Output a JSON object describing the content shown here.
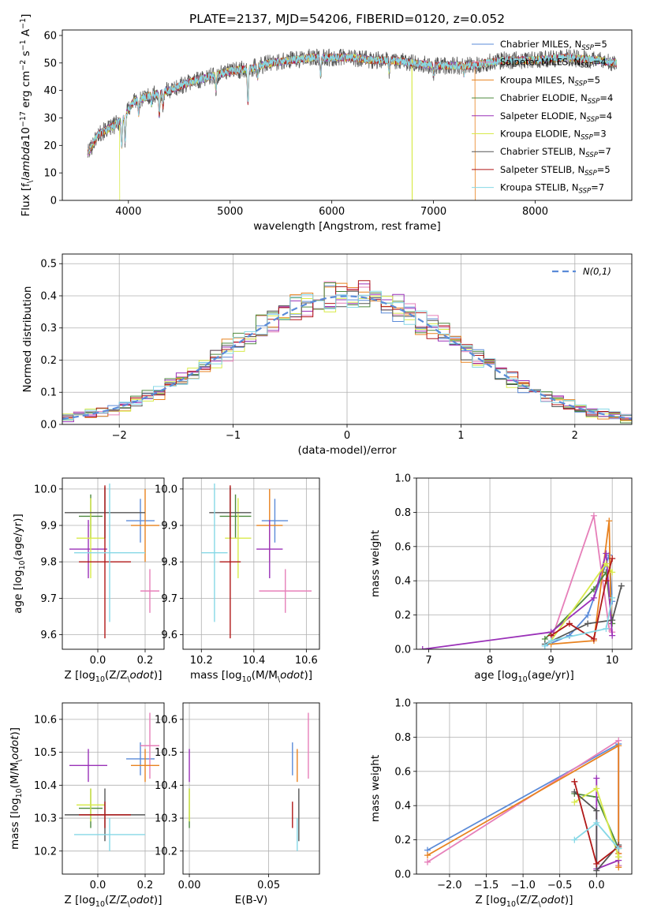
{
  "title": "PLATE=2137, MJD=54206, FIBERID=0120, z=0.052",
  "colors": {
    "Chabrier MILES": "#5b8bd8",
    "Salpeter MILES": "#e67fb9",
    "Kroupa MILES": "#e8821f",
    "Chabrier ELODIE": "#4d8a3d",
    "Salpeter ELODIE": "#9a31b8",
    "Kroupa ELODIE": "#d8ea4a",
    "Chabrier STELIB": "#555555",
    "Salpeter STELIB": "#b01818",
    "Kroupa STELIB": "#86d8e6"
  },
  "chart_data": [
    {
      "id": "spectrum",
      "type": "line",
      "title": "PLATE=2137, MJD=54206, FIBERID=0120, z=0.052",
      "xlabel": "wavelength [Angstrom, rest frame]",
      "ylabel": "Flux [f$_\\lambda$10$^{-17}$ erg cm$^{-2}$ s$^{-1}$ A$^{-1}$]",
      "xlim": [
        3350,
        8950
      ],
      "ylim": [
        0,
        62
      ],
      "xticks": [
        4000,
        5000,
        6000,
        7000,
        8000
      ],
      "yticks": [
        0,
        10,
        20,
        30,
        40,
        50,
        60
      ],
      "grid": false,
      "legend_position": "right",
      "legend": [
        {
          "model": "Chabrier MILES",
          "label": "Chabrier MILES, N",
          "sub": "SSP",
          "eq": "=5"
        },
        {
          "model": "Salpeter MILES",
          "label": "Salpeter MILES, N",
          "sub": "SSP",
          "eq": "=4"
        },
        {
          "model": "Kroupa MILES",
          "label": "Kroupa MILES, N",
          "sub": "SSP",
          "eq": "=5"
        },
        {
          "model": "Chabrier ELODIE",
          "label": "Chabrier ELODIE, N",
          "sub": "SSP",
          "eq": "=4"
        },
        {
          "model": "Salpeter ELODIE",
          "label": "Salpeter ELODIE, N",
          "sub": "SSP",
          "eq": "=4"
        },
        {
          "model": "Kroupa ELODIE",
          "label": "Kroupa ELODIE, N",
          "sub": "SSP",
          "eq": "=3"
        },
        {
          "model": "Chabrier STELIB",
          "label": "Chabrier STELIB, N",
          "sub": "SSP",
          "eq": "=7"
        },
        {
          "model": "Salpeter STELIB",
          "label": "Salpeter STELIB, N",
          "sub": "SSP",
          "eq": "=5"
        },
        {
          "model": "Kroupa STELIB",
          "label": "Kroupa STELIB, N",
          "sub": "SSP",
          "eq": "=7"
        }
      ],
      "continuum": [
        [
          3600,
          17
        ],
        [
          3700,
          24
        ],
        [
          3850,
          27
        ],
        [
          3950,
          30
        ],
        [
          4050,
          36
        ],
        [
          4200,
          38
        ],
        [
          4400,
          40
        ],
        [
          4600,
          43
        ],
        [
          4800,
          45
        ],
        [
          5000,
          47
        ],
        [
          5200,
          48
        ],
        [
          5400,
          50
        ],
        [
          5600,
          51
        ],
        [
          5800,
          52
        ],
        [
          6000,
          52
        ],
        [
          6200,
          52
        ],
        [
          6400,
          51
        ],
        [
          6600,
          51
        ],
        [
          6800,
          50
        ],
        [
          7000,
          49
        ],
        [
          7200,
          49
        ],
        [
          7400,
          49
        ],
        [
          7500,
          50
        ],
        [
          7700,
          51
        ],
        [
          8000,
          51
        ],
        [
          8300,
          52
        ],
        [
          8600,
          51
        ],
        [
          8800,
          50
        ]
      ],
      "absorption_features": [
        [
          3934,
          10
        ],
        [
          3968,
          10
        ],
        [
          4101,
          5
        ],
        [
          4227,
          3
        ],
        [
          4304,
          8
        ],
        [
          4340,
          5
        ],
        [
          4861,
          5
        ],
        [
          5175,
          12
        ],
        [
          5270,
          4
        ],
        [
          5890,
          6
        ],
        [
          6563,
          4
        ],
        [
          7000,
          3
        ],
        [
          7300,
          3
        ]
      ],
      "model_edges": [
        {
          "model": "Kroupa ELODIE",
          "edge": 3915
        },
        {
          "model": "Kroupa ELODIE",
          "edge": 6790
        },
        {
          "model": "Kroupa MILES",
          "edge": 7410
        }
      ]
    },
    {
      "id": "residual-distribution",
      "type": "line",
      "xlabel": "(data-model)/error",
      "ylabel": "Normed distribution",
      "xlim": [
        -2.5,
        2.5
      ],
      "ylim": [
        0,
        0.53
      ],
      "xticks": [
        -2,
        -1,
        0,
        1,
        2
      ],
      "yticks": [
        0,
        0.1,
        0.2,
        0.3,
        0.4,
        0.5
      ],
      "grid": true,
      "legend_position": "top-right",
      "bin_width": 0.1,
      "reference": {
        "label": "$\\mathcal{N}(0,1)$",
        "color": "#5b8bd8",
        "dash": true
      }
    },
    {
      "id": "age-vs-Z",
      "type": "scatter",
      "xlabel": "Z [log$_{10}$(Z/Z$_\\odot$)]",
      "ylabel": "age  [log$_{10}$(age/yr)]",
      "xlim": [
        -0.15,
        0.28
      ],
      "ylim": [
        9.56,
        10.03
      ],
      "xticks": [
        0.0,
        0.2
      ],
      "yticks": [
        9.6,
        9.7,
        9.8,
        9.9,
        10.0
      ],
      "grid": true,
      "points": [
        {
          "model": "Chabrier MILES",
          "x": 0.18,
          "xerr": 0.06,
          "y": 9.913,
          "yerr": 0.06
        },
        {
          "model": "Salpeter MILES",
          "x": 0.22,
          "xerr": 0.04,
          "y": 9.72,
          "yerr": 0.06
        },
        {
          "model": "Kroupa MILES",
          "x": 0.2,
          "xerr": 0.06,
          "y": 9.9,
          "yerr": 0.1
        },
        {
          "model": "Chabrier ELODIE",
          "x": -0.03,
          "xerr": 0.05,
          "y": 9.925,
          "yerr": 0.06
        },
        {
          "model": "Salpeter ELODIE",
          "x": -0.04,
          "xerr": 0.08,
          "y": 9.835,
          "yerr": 0.08
        },
        {
          "model": "Kroupa ELODIE",
          "x": -0.03,
          "xerr": 0.06,
          "y": 9.865,
          "yerr": 0.11
        },
        {
          "model": "Chabrier STELIB",
          "x": 0.03,
          "xerr": 0.17,
          "y": 9.935,
          "yerr": 0.07
        },
        {
          "model": "Salpeter STELIB",
          "x": 0.03,
          "xerr": 0.11,
          "y": 9.8,
          "yerr": 0.21
        },
        {
          "model": "Kroupa STELIB",
          "x": 0.05,
          "xerr": 0.15,
          "y": 9.825,
          "yerr": 0.19
        }
      ]
    },
    {
      "id": "age-vs-mass",
      "type": "scatter",
      "xlabel": "mass [log$_{10}$(M/M$_\\odot$)]",
      "ylabel": "",
      "xlim": [
        10.13,
        10.65
      ],
      "ylim": [
        9.56,
        10.03
      ],
      "xticks": [
        10.2,
        10.4,
        10.6
      ],
      "yticks": [
        9.6,
        9.7,
        9.8,
        9.9,
        10.0
      ],
      "grid": true,
      "points": [
        {
          "model": "Chabrier MILES",
          "x": 10.48,
          "xerr": 0.05,
          "y": 9.913,
          "yerr": 0.06
        },
        {
          "model": "Salpeter MILES",
          "x": 10.52,
          "xerr": 0.1,
          "y": 9.72,
          "yerr": 0.06
        },
        {
          "model": "Kroupa MILES",
          "x": 10.46,
          "xerr": 0.05,
          "y": 9.9,
          "yerr": 0.1
        },
        {
          "model": "Chabrier ELODIE",
          "x": 10.33,
          "xerr": 0.06,
          "y": 9.925,
          "yerr": 0.06
        },
        {
          "model": "Salpeter ELODIE",
          "x": 10.46,
          "xerr": 0.05,
          "y": 9.835,
          "yerr": 0.08
        },
        {
          "model": "Kroupa ELODIE",
          "x": 10.34,
          "xerr": 0.05,
          "y": 9.865,
          "yerr": 0.11
        },
        {
          "model": "Chabrier STELIB",
          "x": 10.31,
          "xerr": 0.08,
          "y": 9.935,
          "yerr": 0.07
        },
        {
          "model": "Salpeter STELIB",
          "x": 10.31,
          "xerr": 0.04,
          "y": 9.8,
          "yerr": 0.21
        },
        {
          "model": "Kroupa STELIB",
          "x": 10.25,
          "xerr": 0.05,
          "y": 9.825,
          "yerr": 0.19
        }
      ]
    },
    {
      "id": "mass-weight-vs-age",
      "type": "line",
      "xlabel": "age  [log$_{10}$(age/yr)]",
      "ylabel": "mass weight",
      "xlim": [
        6.8,
        10.32
      ],
      "ylim": [
        0,
        1
      ],
      "xticks": [
        7,
        8,
        9,
        10
      ],
      "yticks": [
        0,
        0.2,
        0.4,
        0.6,
        0.8,
        1.0
      ],
      "grid": true,
      "series": [
        {
          "model": "Chabrier MILES",
          "x": [
            8.9,
            9.3,
            9.6,
            9.95,
            10.0
          ],
          "y": [
            0.02,
            0.08,
            0.2,
            0.55,
            0.28
          ]
        },
        {
          "model": "Salpeter MILES",
          "x": [
            9.0,
            9.7,
            9.95,
            10.0
          ],
          "y": [
            0.05,
            0.78,
            0.12,
            0.1
          ]
        },
        {
          "model": "Kroupa MILES",
          "x": [
            9.0,
            9.7,
            9.95,
            9.98
          ],
          "y": [
            0.03,
            0.05,
            0.75,
            0.2
          ]
        },
        {
          "model": "Chabrier ELODIE",
          "x": [
            8.9,
            9.7,
            9.9,
            10.0
          ],
          "y": [
            0.06,
            0.35,
            0.45,
            0.15
          ]
        },
        {
          "model": "Salpeter ELODIE",
          "x": [
            6.9,
            9.0,
            9.7,
            9.9,
            10.0
          ],
          "y": [
            0.0,
            0.1,
            0.3,
            0.56,
            0.08
          ]
        },
        {
          "model": "Kroupa ELODIE",
          "x": [
            9.0,
            9.9,
            10.0
          ],
          "y": [
            0.05,
            0.5,
            0.45
          ]
        },
        {
          "model": "Chabrier STELIB",
          "x": [
            8.9,
            9.6,
            10.0,
            10.15
          ],
          "y": [
            0.03,
            0.15,
            0.17,
            0.37
          ]
        },
        {
          "model": "Salpeter STELIB",
          "x": [
            9.0,
            9.3,
            9.7,
            9.9,
            10.0
          ],
          "y": [
            0.08,
            0.15,
            0.06,
            0.4,
            0.53
          ]
        },
        {
          "model": "Kroupa STELIB",
          "x": [
            8.9,
            9.0,
            9.9,
            10.0
          ],
          "y": [
            0.02,
            0.05,
            0.12,
            0.3
          ]
        }
      ]
    },
    {
      "id": "mass-vs-Z",
      "type": "scatter",
      "xlabel": "Z [log$_{10}$(Z/Z$_\\odot$)]",
      "ylabel": "mass [log$_{10}$(M/M$_\\odot$)]",
      "xlim": [
        -0.15,
        0.28
      ],
      "ylim": [
        10.13,
        10.65
      ],
      "xticks": [
        0.0,
        0.2
      ],
      "yticks": [
        10.2,
        10.3,
        10.4,
        10.5,
        10.6
      ],
      "grid": true,
      "points": [
        {
          "model": "Chabrier MILES",
          "x": 0.18,
          "xerr": 0.06,
          "y": 10.48,
          "yerr": 0.05
        },
        {
          "model": "Salpeter MILES",
          "x": 0.22,
          "xerr": 0.04,
          "y": 10.52,
          "yerr": 0.1
        },
        {
          "model": "Kroupa MILES",
          "x": 0.2,
          "xerr": 0.06,
          "y": 10.46,
          "yerr": 0.05
        },
        {
          "model": "Chabrier ELODIE",
          "x": -0.03,
          "xerr": 0.05,
          "y": 10.33,
          "yerr": 0.06
        },
        {
          "model": "Salpeter ELODIE",
          "x": -0.04,
          "xerr": 0.08,
          "y": 10.46,
          "yerr": 0.05
        },
        {
          "model": "Kroupa ELODIE",
          "x": -0.03,
          "xerr": 0.06,
          "y": 10.34,
          "yerr": 0.05
        },
        {
          "model": "Chabrier STELIB",
          "x": 0.03,
          "xerr": 0.17,
          "y": 10.31,
          "yerr": 0.08
        },
        {
          "model": "Salpeter STELIB",
          "x": 0.03,
          "xerr": 0.11,
          "y": 10.31,
          "yerr": 0.04
        },
        {
          "model": "Kroupa STELIB",
          "x": 0.05,
          "xerr": 0.15,
          "y": 10.25,
          "yerr": 0.05
        }
      ]
    },
    {
      "id": "mass-vs-ebv",
      "type": "scatter",
      "xlabel": "E(B-V)",
      "ylabel": "",
      "xlim": [
        -0.004,
        0.082
      ],
      "ylim": [
        10.13,
        10.65
      ],
      "xticks": [
        0.0,
        0.05
      ],
      "yticks": [
        10.2,
        10.3,
        10.4,
        10.5,
        10.6
      ],
      "grid": true,
      "points": [
        {
          "model": "Chabrier MILES",
          "x": 0.065,
          "y": 10.48,
          "yerr": 0.05
        },
        {
          "model": "Salpeter MILES",
          "x": 0.075,
          "y": 10.52,
          "yerr": 0.1
        },
        {
          "model": "Kroupa MILES",
          "x": 0.068,
          "y": 10.46,
          "yerr": 0.05
        },
        {
          "model": "Chabrier ELODIE",
          "x": 0.0,
          "y": 10.33,
          "yerr": 0.06
        },
        {
          "model": "Salpeter ELODIE",
          "x": 0.0,
          "y": 10.46,
          "yerr": 0.05
        },
        {
          "model": "Kroupa ELODIE",
          "x": 0.0,
          "y": 10.34,
          "yerr": 0.05
        },
        {
          "model": "Chabrier STELIB",
          "x": 0.069,
          "y": 10.31,
          "yerr": 0.08
        },
        {
          "model": "Salpeter STELIB",
          "x": 0.065,
          "y": 10.31,
          "yerr": 0.04
        },
        {
          "model": "Kroupa STELIB",
          "x": 0.068,
          "y": 10.25,
          "yerr": 0.05
        }
      ]
    },
    {
      "id": "mass-weight-vs-Z",
      "type": "line",
      "xlabel": "Z [log$_{10}$(Z/Z$_\\odot$)]",
      "ylabel": "mass weight",
      "xlim": [
        -2.45,
        0.48
      ],
      "ylim": [
        0,
        1
      ],
      "xticks": [
        -2.0,
        -1.5,
        -1.0,
        -0.5,
        0.0
      ],
      "yticks": [
        0,
        0.2,
        0.4,
        0.6,
        0.8,
        1.0
      ],
      "grid": true,
      "series": [
        {
          "model": "Chabrier MILES",
          "x": [
            -2.3,
            0.3,
            0.3,
            0.3
          ],
          "y": [
            0.14,
            0.76,
            0.1,
            0.05
          ]
        },
        {
          "model": "Salpeter MILES",
          "x": [
            -2.3,
            0.3,
            0.3,
            0.3
          ],
          "y": [
            0.07,
            0.78,
            0.12,
            0.05
          ]
        },
        {
          "model": "Kroupa MILES",
          "x": [
            -2.3,
            0.3,
            0.3,
            0.3
          ],
          "y": [
            0.11,
            0.75,
            0.12,
            0.04
          ]
        },
        {
          "model": "Chabrier ELODIE",
          "x": [
            -0.3,
            0.0,
            0.3
          ],
          "y": [
            0.47,
            0.45,
            0.15
          ]
        },
        {
          "model": "Salpeter ELODIE",
          "x": [
            0.0,
            0.0,
            0.3
          ],
          "y": [
            0.56,
            0.03,
            0.08
          ]
        },
        {
          "model": "Kroupa ELODIE",
          "x": [
            -0.3,
            0.0,
            0.3
          ],
          "y": [
            0.42,
            0.5,
            0.1
          ]
        },
        {
          "model": "Chabrier STELIB",
          "x": [
            -0.3,
            0.0,
            0.0,
            0.3
          ],
          "y": [
            0.48,
            0.37,
            0.02,
            0.17
          ]
        },
        {
          "model": "Salpeter STELIB",
          "x": [
            -0.3,
            0.0,
            0.3
          ],
          "y": [
            0.54,
            0.06,
            0.16
          ]
        },
        {
          "model": "Kroupa STELIB",
          "x": [
            -0.3,
            0.0,
            0.3
          ],
          "y": [
            0.2,
            0.3,
            0.15
          ]
        }
      ]
    }
  ]
}
